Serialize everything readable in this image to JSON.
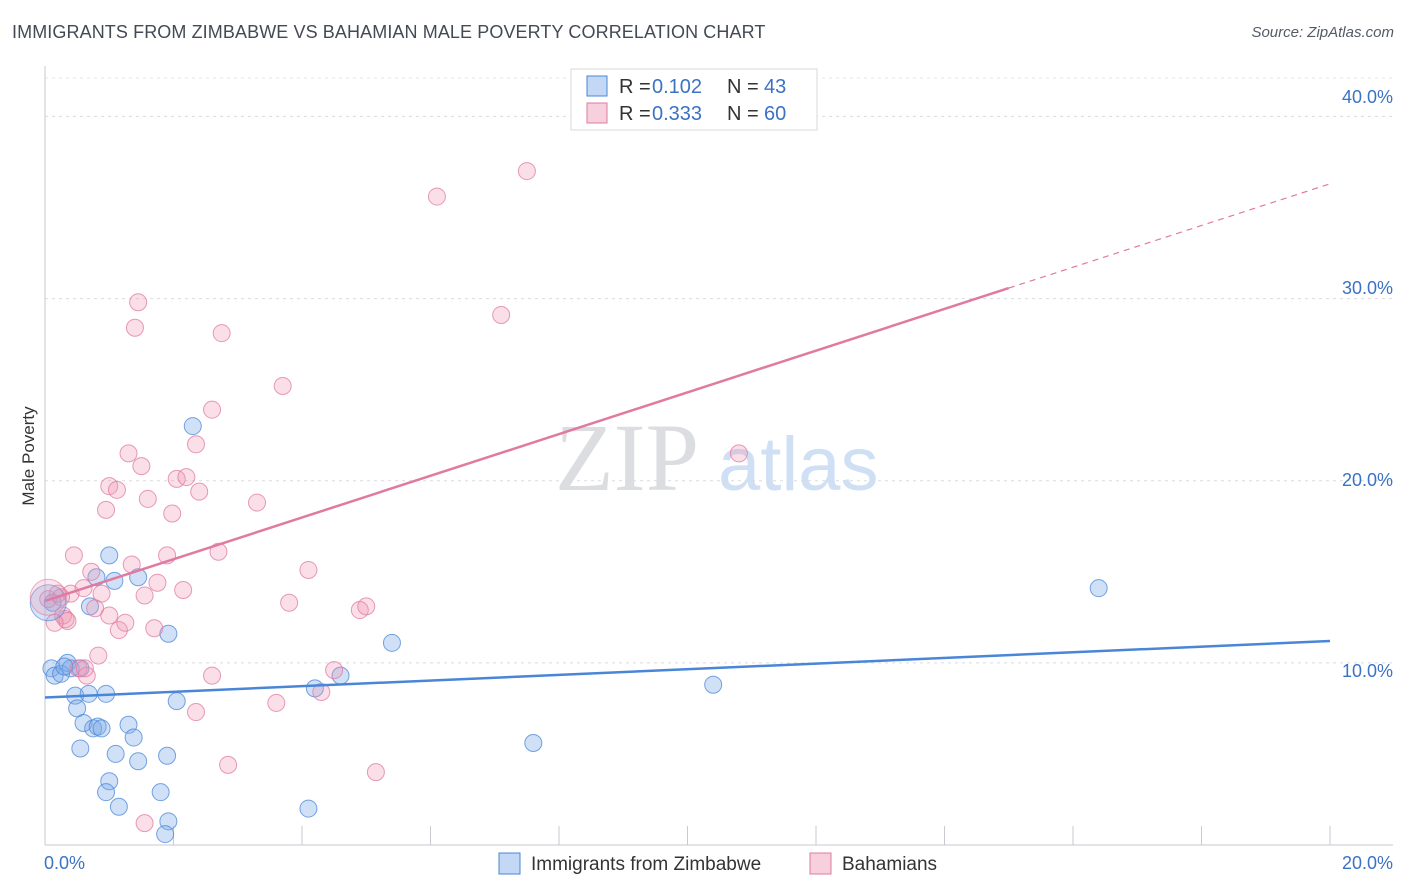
{
  "title": "IMMIGRANTS FROM ZIMBABWE VS BAHAMIAN MALE POVERTY CORRELATION CHART",
  "source": "Source: ZipAtlas.com",
  "watermark": {
    "zip": "ZIP",
    "atlas": "atlas"
  },
  "legend": {
    "r_label": "R =",
    "n_label": "N =",
    "rows": [
      {
        "series": "Immigrants from Zimbabwe",
        "r": "0.102",
        "n": "43",
        "color": "#4a86d8"
      },
      {
        "series": "Bahamians",
        "r": "0.333",
        "n": "60",
        "color": "#e07aa0"
      }
    ]
  },
  "chart_data": {
    "type": "scatter",
    "title": "IMMIGRANTS FROM ZIMBABWE VS BAHAMIAN MALE POVERTY CORRELATION CHART",
    "xlabel": "",
    "ylabel": "Male Poverty",
    "xlim": [
      0,
      20
    ],
    "ylim": [
      0,
      42
    ],
    "x_ticks": [
      "0.0%",
      "20.0%"
    ],
    "y_ticks": [
      {
        "value": 10,
        "label": "10.0%"
      },
      {
        "value": 20,
        "label": "20.0%"
      },
      {
        "value": 30,
        "label": "30.0%"
      },
      {
        "value": 40,
        "label": "40.0%"
      }
    ],
    "series": [
      {
        "name": "Immigrants from Zimbabwe",
        "color": "#4a86d8",
        "fill": "rgba(120,168,232,0.35)",
        "trend": {
          "x0": 0,
          "y0": 8.1,
          "x1": 20,
          "y1": 11.2,
          "dash_from": null
        },
        "points": [
          [
            0.12,
            13.3
          ],
          [
            0.1,
            9.7
          ],
          [
            0.15,
            9.3
          ],
          [
            0.25,
            9.4
          ],
          [
            0.35,
            10.0
          ],
          [
            0.4,
            9.7
          ],
          [
            0.47,
            8.2
          ],
          [
            0.5,
            7.5
          ],
          [
            0.55,
            5.3
          ],
          [
            0.6,
            6.7
          ],
          [
            0.68,
            8.3
          ],
          [
            0.75,
            6.4
          ],
          [
            0.82,
            6.5
          ],
          [
            0.88,
            6.4
          ],
          [
            0.95,
            8.3
          ],
          [
            0.7,
            13.1
          ],
          [
            0.8,
            14.7
          ],
          [
            1.0,
            3.5
          ],
          [
            0.95,
            2.9
          ],
          [
            1.1,
            5.0
          ],
          [
            1.15,
            2.1
          ],
          [
            1.3,
            6.6
          ],
          [
            1.38,
            5.9
          ],
          [
            1.45,
            4.6
          ],
          [
            1.0,
            15.9
          ],
          [
            1.08,
            14.5
          ],
          [
            1.45,
            14.7
          ],
          [
            1.8,
            2.9
          ],
          [
            1.9,
            4.9
          ],
          [
            1.92,
            11.6
          ],
          [
            2.05,
            7.9
          ],
          [
            1.92,
            1.3
          ],
          [
            1.87,
            0.6
          ],
          [
            2.3,
            23.0
          ],
          [
            4.1,
            2.0
          ],
          [
            4.2,
            8.6
          ],
          [
            4.6,
            9.3
          ],
          [
            5.4,
            11.1
          ],
          [
            7.6,
            5.6
          ],
          [
            10.4,
            8.8
          ],
          [
            16.4,
            14.1
          ],
          [
            0.3,
            9.8
          ],
          [
            0.55,
            9.7
          ]
        ]
      },
      {
        "name": "Bahamians",
        "color": "#e07aa0",
        "fill": "rgba(238,150,180,0.3)",
        "trend": {
          "x0": 0,
          "y0": 13.4,
          "x1": 20,
          "y1": 36.3,
          "dash_from": 15.0
        },
        "points": [
          [
            0.05,
            13.5
          ],
          [
            0.2,
            13.8
          ],
          [
            0.28,
            12.6
          ],
          [
            0.32,
            12.4
          ],
          [
            0.4,
            13.8
          ],
          [
            0.45,
            15.9
          ],
          [
            0.52,
            9.7
          ],
          [
            0.6,
            14.1
          ],
          [
            0.65,
            9.3
          ],
          [
            0.72,
            15.0
          ],
          [
            0.78,
            13.0
          ],
          [
            0.83,
            10.4
          ],
          [
            0.88,
            13.8
          ],
          [
            0.95,
            18.4
          ],
          [
            1.0,
            19.7
          ],
          [
            1.12,
            19.5
          ],
          [
            1.15,
            11.8
          ],
          [
            1.25,
            12.2
          ],
          [
            1.3,
            21.5
          ],
          [
            1.35,
            15.4
          ],
          [
            1.4,
            28.4
          ],
          [
            1.45,
            29.8
          ],
          [
            1.5,
            20.8
          ],
          [
            1.55,
            13.7
          ],
          [
            1.6,
            19.0
          ],
          [
            1.7,
            11.9
          ],
          [
            1.75,
            14.4
          ],
          [
            1.9,
            15.9
          ],
          [
            1.98,
            18.2
          ],
          [
            2.05,
            20.1
          ],
          [
            2.2,
            20.2
          ],
          [
            2.15,
            14.0
          ],
          [
            2.4,
            19.4
          ],
          [
            2.35,
            22.0
          ],
          [
            2.6,
            23.9
          ],
          [
            2.75,
            28.1
          ],
          [
            2.7,
            16.1
          ],
          [
            3.3,
            18.8
          ],
          [
            3.7,
            25.2
          ],
          [
            3.8,
            13.3
          ],
          [
            4.1,
            15.1
          ],
          [
            4.3,
            8.4
          ],
          [
            4.5,
            9.6
          ],
          [
            4.9,
            12.9
          ],
          [
            5.0,
            13.1
          ],
          [
            5.15,
            4.0
          ],
          [
            6.1,
            35.6
          ],
          [
            7.1,
            29.1
          ],
          [
            7.5,
            37.0
          ],
          [
            10.8,
            21.5
          ],
          [
            1.55,
            1.2
          ],
          [
            3.6,
            7.8
          ],
          [
            2.85,
            4.4
          ],
          [
            0.35,
            12.3
          ],
          [
            2.6,
            9.3
          ],
          [
            0.62,
            9.7
          ],
          [
            0.15,
            12.2
          ],
          [
            0.25,
            13.6
          ],
          [
            1.0,
            12.6
          ],
          [
            2.35,
            7.3
          ]
        ]
      }
    ]
  }
}
